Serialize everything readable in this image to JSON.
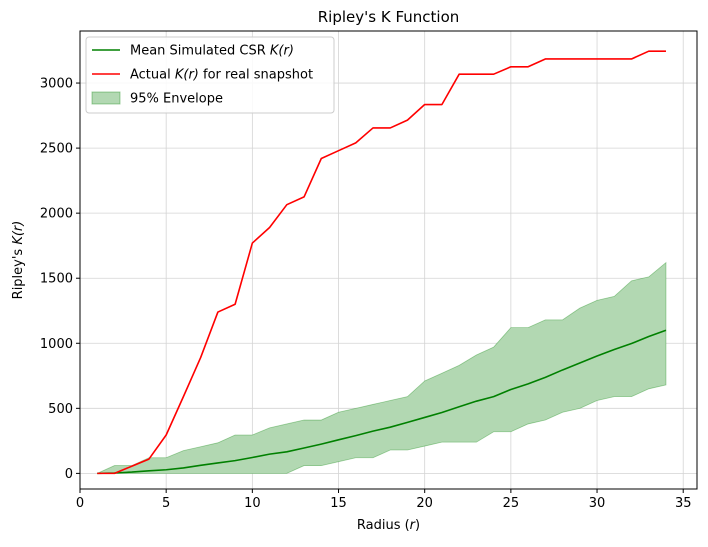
{
  "chart_data": {
    "type": "line",
    "title": "Ripley's K Function",
    "xlabel": {
      "pre": "Radius (",
      "var": "r",
      "post": ")"
    },
    "ylabel": {
      "pre": "Ripley's ",
      "var": "K(r)",
      "post": ""
    },
    "xlim": [
      0,
      35.8
    ],
    "ylim": [
      -120,
      3400
    ],
    "x_ticks": [
      0,
      5,
      10,
      15,
      20,
      25,
      30,
      35
    ],
    "y_ticks": [
      0,
      500,
      1000,
      1500,
      2000,
      2500,
      3000
    ],
    "grid": true,
    "legend_position": "top-left",
    "x": [
      1,
      2,
      3,
      4,
      5,
      6,
      7,
      8,
      9,
      10,
      11,
      12,
      13,
      14,
      15,
      16,
      17,
      18,
      19,
      20,
      21,
      22,
      23,
      24,
      25,
      26,
      27,
      28,
      29,
      30,
      31,
      32,
      33,
      34
    ],
    "series": [
      {
        "name": {
          "pre": "Mean Simulated CSR ",
          "var": "K(r)",
          "post": ""
        },
        "kind": "line",
        "color": "#008000",
        "values": [
          0,
          3,
          10,
          20,
          28,
          42,
          62,
          80,
          98,
          122,
          148,
          166,
          195,
          225,
          258,
          290,
          325,
          355,
          392,
          430,
          468,
          512,
          555,
          590,
          645,
          688,
          738,
          795,
          848,
          902,
          952,
          998,
          1052,
          1100
        ]
      },
      {
        "name": {
          "pre": "Actual ",
          "var": "K(r)",
          "post": " for real snapshot"
        },
        "kind": "line",
        "color": "#ff0000",
        "values": [
          0,
          0,
          55,
          110,
          295,
          590,
          890,
          1240,
          1300,
          1770,
          1890,
          2065,
          2125,
          2420,
          2480,
          2540,
          2655,
          2655,
          2715,
          2835,
          2835,
          3068,
          3068,
          3068,
          3125,
          3125,
          3185,
          3185,
          3185,
          3185,
          3185,
          3185,
          3245,
          3245
        ]
      },
      {
        "name": {
          "pre": "95% Envelope",
          "var": "",
          "post": ""
        },
        "kind": "band",
        "color": "#008000",
        "fill": "#b2d8b2",
        "lower": [
          0,
          0,
          0,
          0,
          0,
          0,
          0,
          0,
          0,
          0,
          0,
          0,
          60,
          60,
          90,
          120,
          120,
          180,
          180,
          210,
          240,
          240,
          240,
          320,
          320,
          380,
          410,
          470,
          500,
          560,
          590,
          590,
          650,
          680
        ],
        "upper": [
          0,
          60,
          60,
          120,
          120,
          175,
          205,
          235,
          295,
          295,
          350,
          380,
          410,
          410,
          470,
          500,
          530,
          560,
          590,
          710,
          770,
          830,
          910,
          970,
          1120,
          1120,
          1180,
          1180,
          1270,
          1330,
          1360,
          1480,
          1510,
          1620
        ]
      }
    ]
  }
}
